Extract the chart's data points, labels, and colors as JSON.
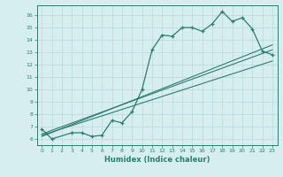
{
  "xlabel": "Humidex (Indice chaleur)",
  "background_color": "#d6eef0",
  "line_color": "#2d7d6e",
  "grid_color": "#b8d8dc",
  "xlim": [
    -0.5,
    23.5
  ],
  "ylim": [
    5.5,
    16.8
  ],
  "yticks": [
    6,
    7,
    8,
    9,
    10,
    11,
    12,
    13,
    14,
    15,
    16
  ],
  "xticks": [
    0,
    1,
    2,
    3,
    4,
    5,
    6,
    7,
    8,
    9,
    10,
    11,
    12,
    13,
    14,
    15,
    16,
    17,
    18,
    19,
    20,
    21,
    22,
    23
  ],
  "line1_x": [
    0,
    1,
    3,
    4,
    5,
    6,
    7,
    8,
    9,
    10,
    11,
    12,
    13,
    14,
    15,
    16,
    17,
    18,
    19,
    20,
    21,
    22,
    23
  ],
  "line1_y": [
    6.8,
    6.0,
    6.5,
    6.5,
    6.2,
    6.3,
    7.5,
    7.3,
    8.2,
    10.0,
    13.2,
    14.4,
    14.3,
    15.0,
    15.0,
    14.7,
    15.3,
    16.3,
    15.5,
    15.8,
    14.9,
    13.1,
    12.8
  ],
  "line2_x": [
    0,
    23
  ],
  "line2_y": [
    6.4,
    13.2
  ],
  "line3_x": [
    0,
    23
  ],
  "line3_y": [
    6.3,
    12.3
  ],
  "line4_x": [
    0,
    23
  ],
  "line4_y": [
    6.2,
    13.6
  ]
}
